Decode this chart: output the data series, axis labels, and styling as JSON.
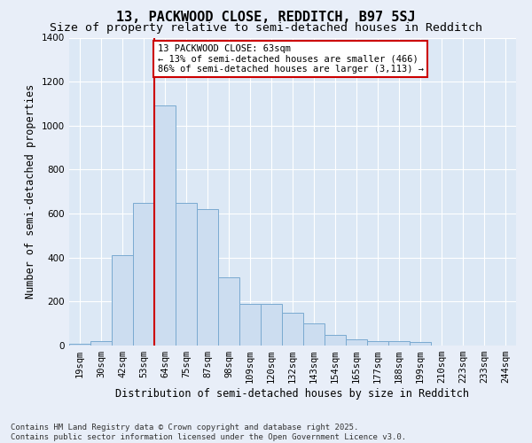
{
  "title": "13, PACKWOOD CLOSE, REDDITCH, B97 5SJ",
  "subtitle": "Size of property relative to semi-detached houses in Redditch",
  "xlabel": "Distribution of semi-detached houses by size in Redditch",
  "ylabel": "Number of semi-detached properties",
  "bins": [
    "19sqm",
    "30sqm",
    "42sqm",
    "53sqm",
    "64sqm",
    "75sqm",
    "87sqm",
    "98sqm",
    "109sqm",
    "120sqm",
    "132sqm",
    "143sqm",
    "154sqm",
    "165sqm",
    "177sqm",
    "188sqm",
    "199sqm",
    "210sqm",
    "223sqm",
    "233sqm",
    "244sqm"
  ],
  "values": [
    10,
    20,
    410,
    650,
    1090,
    650,
    620,
    310,
    190,
    190,
    150,
    100,
    50,
    30,
    20,
    20,
    15,
    0,
    0,
    0,
    0
  ],
  "bar_color": "#ccddf0",
  "bar_edge_color": "#7aaad0",
  "vline_color": "#cc0000",
  "vline_pos": 4,
  "annotation_text": "13 PACKWOOD CLOSE: 63sqm\n← 13% of semi-detached houses are smaller (466)\n86% of semi-detached houses are larger (3,113) →",
  "annotation_box_facecolor": "#ffffff",
  "annotation_box_edgecolor": "#cc0000",
  "bg_color": "#e8eef8",
  "plot_bg_color": "#dce8f5",
  "ylim": [
    0,
    1400
  ],
  "yticks": [
    0,
    200,
    400,
    600,
    800,
    1000,
    1200,
    1400
  ],
  "footer": "Contains HM Land Registry data © Crown copyright and database right 2025.\nContains public sector information licensed under the Open Government Licence v3.0.",
  "title_fontsize": 11,
  "subtitle_fontsize": 9.5,
  "axis_label_fontsize": 8.5,
  "tick_fontsize": 7.5,
  "annotation_fontsize": 7.5,
  "footer_fontsize": 6.5
}
